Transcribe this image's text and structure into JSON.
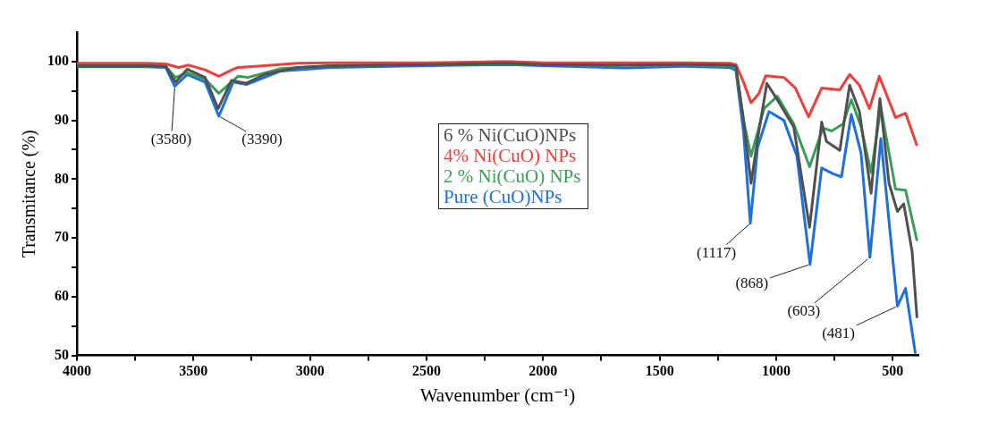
{
  "chart_data": {
    "type": "line",
    "xlabel": "Wavenumber (cm⁻¹)",
    "ylabel": "Transmitance (%)",
    "xlim": [
      4000,
      390
    ],
    "xticks": [
      4000,
      {
        "value": 3750,
        "label": null
      },
      3500,
      {
        "value": 3250,
        "label": null
      },
      3000,
      {
        "value": 2750,
        "label": null
      },
      2500,
      {
        "value": 2250,
        "label": null
      },
      2000,
      {
        "value": 1750,
        "label": null
      },
      1500,
      {
        "value": 1250,
        "label": null
      },
      1000,
      {
        "value": 750,
        "label": null
      },
      500
    ],
    "ylim": [
      50,
      105
    ],
    "yticks": [
      50,
      {
        "value": 55,
        "label": null
      },
      60,
      {
        "value": 65,
        "label": null
      },
      70,
      {
        "value": 75,
        "label": null
      },
      80,
      {
        "value": 85,
        "label": null
      },
      90,
      {
        "value": 95,
        "label": null
      },
      100
    ],
    "grid": false,
    "legend": "center",
    "marker": "none",
    "line_style": "solid",
    "series": [
      {
        "name": "6 % Ni(CuO)NPs",
        "color": "#505050",
        "x": [
          4000,
          3700,
          3619,
          3577,
          3527,
          3450,
          3394,
          3337,
          3273,
          3196,
          3055,
          2900,
          2500,
          2150,
          2000,
          1700,
          1400,
          1200,
          1173,
          1140,
          1108,
          1075,
          1040,
          1003,
          925,
          857,
          805,
          784,
          727,
          685,
          643,
          593,
          555,
          516,
          480,
          453,
          417,
          396
        ],
        "values": [
          99.3,
          99.3,
          99.2,
          96.5,
          98.7,
          97.3,
          92.0,
          96.8,
          96.3,
          97.8,
          99.0,
          99.3,
          99.5,
          99.7,
          99.5,
          99.4,
          99.5,
          99.4,
          99.2,
          90.0,
          79.3,
          88.0,
          96.3,
          94.0,
          88.9,
          71.8,
          89.7,
          86.4,
          84.9,
          96.0,
          91.5,
          77.6,
          93.7,
          79.3,
          74.5,
          75.8,
          67.7,
          56.4
        ]
      },
      {
        "name": "4% Ni(CuO) NPs",
        "color": "#ee3e3e",
        "x": [
          4000,
          3700,
          3619,
          3563,
          3520,
          3450,
          3391,
          3340,
          3309,
          3196,
          3055,
          2900,
          2500,
          2150,
          2000,
          1700,
          1400,
          1200,
          1173,
          1140,
          1108,
          1075,
          1045,
          967,
          918,
          861,
          805,
          727,
          685,
          643,
          600,
          558,
          488,
          445,
          396
        ],
        "values": [
          99.7,
          99.7,
          99.6,
          99.0,
          99.4,
          98.6,
          97.5,
          98.5,
          99.0,
          99.3,
          99.7,
          99.8,
          99.8,
          100,
          99.8,
          99.8,
          99.8,
          99.7,
          99.5,
          96.5,
          93.0,
          94.5,
          97.6,
          97.3,
          95.5,
          90.6,
          95.5,
          95.2,
          97.8,
          96.0,
          92.0,
          97.5,
          90.5,
          91.2,
          85.7
        ]
      },
      {
        "name": "2 % Ni(CuO) NPs",
        "color": "#3a9e5a",
        "x": [
          4000,
          3700,
          3619,
          3577,
          3527,
          3450,
          3391,
          3309,
          3266,
          3125,
          2900,
          2500,
          2150,
          2000,
          1700,
          1400,
          1200,
          1173,
          1140,
          1108,
          1052,
          995,
          925,
          857,
          800,
          762,
          713,
          678,
          636,
          593,
          551,
          488,
          445,
          396
        ],
        "values": [
          99.3,
          99.3,
          99.2,
          97.3,
          98.1,
          97.0,
          94.6,
          97.5,
          97.3,
          98.8,
          99.3,
          99.5,
          99.7,
          99.5,
          99.3,
          99.4,
          99.3,
          99.0,
          90.0,
          83.9,
          92.0,
          94.1,
          89.4,
          82.1,
          88.7,
          88.2,
          89.4,
          93.5,
          88.9,
          81.1,
          92.2,
          78.3,
          78.1,
          69.5
        ]
      },
      {
        "name": "Pure (CuO)NPs",
        "color": "#1f6fe0",
        "x": [
          4000,
          3700,
          3619,
          3580,
          3527,
          3450,
          3391,
          3330,
          3273,
          3125,
          2914,
          2500,
          2150,
          2000,
          1650,
          1400,
          1200,
          1173,
          1140,
          1111,
          1080,
          1031,
          967,
          911,
          855,
          805,
          756,
          720,
          678,
          636,
          598,
          551,
          516,
          480,
          445,
          403
        ],
        "values": [
          99.1,
          99.1,
          99.0,
          95.8,
          97.8,
          96.5,
          90.7,
          96.5,
          96.1,
          98.4,
          99.0,
          99.3,
          99.5,
          99.3,
          98.9,
          99.2,
          99.0,
          98.5,
          88.0,
          72.5,
          85.4,
          91.5,
          90.0,
          83.9,
          65.5,
          81.9,
          80.9,
          80.4,
          91.0,
          84.4,
          66.7,
          86.9,
          72.8,
          58.4,
          61.4,
          50.3
        ]
      }
    ],
    "annotations": [
      {
        "text": "(3580)",
        "x": 3580,
        "y": 95.8
      },
      {
        "text": "(3390)",
        "x": 3390,
        "y": 90.7
      },
      {
        "text": "(1117)",
        "x": 1111,
        "y": 72.5
      },
      {
        "text": "(868)",
        "x": 855,
        "y": 65.5
      },
      {
        "text": "(603)",
        "x": 598,
        "y": 66.7
      },
      {
        "text": "(481)",
        "x": 480,
        "y": 58.4
      }
    ]
  }
}
